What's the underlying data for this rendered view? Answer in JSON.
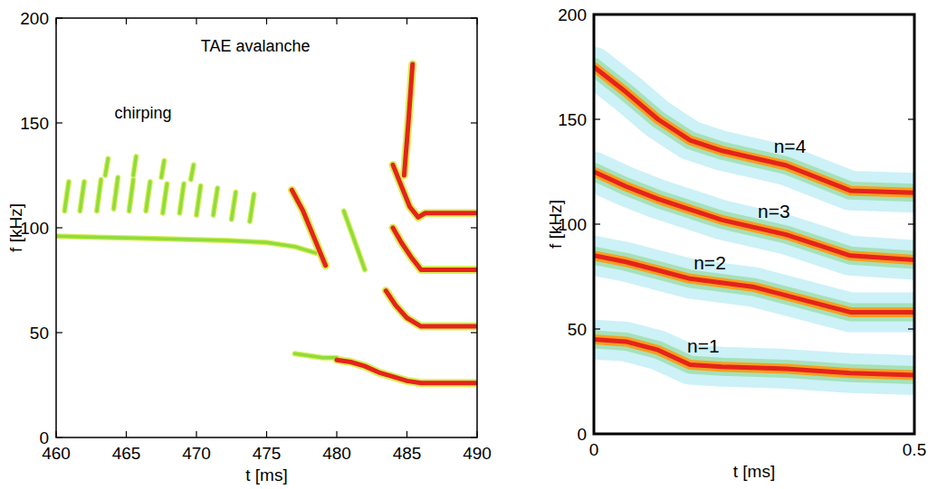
{
  "chart_data": [
    {
      "type": "spectrogram",
      "x_label": "t [ms]",
      "y_label": "f [kHz]",
      "xlim": [
        460,
        490
      ],
      "ylim": [
        0,
        200
      ],
      "xticks": [
        460,
        465,
        470,
        475,
        480,
        485,
        490
      ],
      "yticks": [
        0,
        50,
        100,
        150,
        200
      ],
      "annotations": [
        {
          "text": "chirping",
          "x": 466.2,
          "y": 152
        },
        {
          "text": "TAE avalanche",
          "x": 474.2,
          "y": 184
        }
      ],
      "series": [
        {
          "color": "#8fdc3c",
          "x": [
            460.6,
            460.9,
            460.9,
            461.7,
            462.0,
            462.0,
            462.9,
            463.2,
            463.2,
            464.1,
            464.4,
            464.4,
            465.2,
            465.5,
            465.5,
            466.4,
            466.7,
            466.7,
            467.6,
            467.9,
            467.9,
            468.8,
            469.1,
            469.1,
            470.0,
            470.3,
            470.3,
            471.2,
            471.5,
            471.5,
            472.5,
            472.8,
            472.8,
            473.8,
            474.1
          ],
          "values": [
            108,
            122,
            null,
            108,
            122,
            null,
            108,
            123,
            null,
            109,
            124,
            null,
            108,
            123,
            null,
            108,
            122,
            null,
            107,
            121,
            null,
            107,
            121,
            null,
            106,
            120,
            null,
            106,
            119,
            null,
            104,
            117,
            null,
            103,
            116
          ]
        },
        {
          "color": "#8fdc3c",
          "x": [
            460,
            463,
            466,
            469,
            472,
            475,
            477,
            478.5
          ],
          "values": [
            96,
            95.5,
            95,
            94.5,
            94,
            93,
            91,
            88
          ]
        },
        {
          "color": "#8fdc3c",
          "x": [
            463.5,
            463.7,
            463.7,
            465.5,
            465.7,
            465.7,
            467.5,
            467.7,
            467.7,
            469.6,
            469.8
          ],
          "values": [
            125,
            133,
            null,
            125,
            134,
            null,
            124,
            132,
            null,
            123,
            130
          ]
        },
        {
          "color": "#e5231b",
          "x": [
            476.8,
            477.6,
            478.4,
            479.2
          ],
          "values": [
            118,
            108,
            95,
            82
          ]
        },
        {
          "color": "#8fdc3c",
          "x": [
            480.5,
            481.2,
            482.0
          ],
          "values": [
            108,
            95,
            80
          ]
        },
        {
          "color": "#8fdc3c",
          "x": [
            477,
            478,
            479,
            480
          ],
          "values": [
            40,
            39,
            38,
            38
          ]
        },
        {
          "color": "#e5231b",
          "x": [
            480,
            481,
            482,
            483,
            484,
            485,
            486,
            488,
            490
          ],
          "values": [
            37,
            36,
            34,
            31,
            29,
            27,
            26,
            26,
            26
          ]
        },
        {
          "color": "#e5231b",
          "x": [
            484.8,
            485.1,
            485.4
          ],
          "values": [
            125,
            150,
            178
          ]
        },
        {
          "color": "#e5231b",
          "x": [
            484,
            484.6,
            485.2,
            485.8,
            486.3,
            490
          ],
          "values": [
            130,
            120,
            110,
            105,
            107,
            107
          ]
        },
        {
          "color": "#e5231b",
          "x": [
            484,
            484.6,
            485.3,
            486,
            486.5,
            490
          ],
          "values": [
            100,
            93,
            86,
            80,
            80,
            80
          ]
        },
        {
          "color": "#e5231b",
          "x": [
            483.5,
            484.2,
            485,
            486,
            490
          ],
          "values": [
            70,
            63,
            57,
            53,
            53
          ]
        }
      ]
    },
    {
      "type": "spectrogram",
      "x_label": "t [ms]",
      "y_label": "f [kHz]",
      "xlim": [
        0,
        0.5
      ],
      "ylim": [
        0,
        200
      ],
      "xticks": [
        0,
        0.5
      ],
      "yticks": [
        0,
        50,
        100,
        150,
        200
      ],
      "series": [
        {
          "name": "n=1",
          "color": "#e5231b",
          "x": [
            0,
            0.05,
            0.1,
            0.15,
            0.2,
            0.3,
            0.4,
            0.5
          ],
          "values": [
            45,
            44,
            40,
            33,
            32,
            31,
            29,
            28
          ]
        },
        {
          "name": "n=2",
          "color": "#e5231b",
          "x": [
            0,
            0.05,
            0.1,
            0.15,
            0.25,
            0.35,
            0.4,
            0.5
          ],
          "values": [
            85,
            82,
            78,
            74,
            70,
            62,
            58,
            58
          ]
        },
        {
          "name": "n=3",
          "color": "#e5231b",
          "x": [
            0,
            0.05,
            0.1,
            0.2,
            0.3,
            0.35,
            0.4,
            0.5
          ],
          "values": [
            125,
            118,
            112,
            102,
            95,
            90,
            85,
            83
          ]
        },
        {
          "name": "n=4",
          "color": "#e5231b",
          "x": [
            0,
            0.05,
            0.1,
            0.15,
            0.2,
            0.3,
            0.4,
            0.5
          ],
          "values": [
            175,
            163,
            150,
            140,
            135,
            128,
            116,
            115
          ]
        }
      ]
    }
  ]
}
